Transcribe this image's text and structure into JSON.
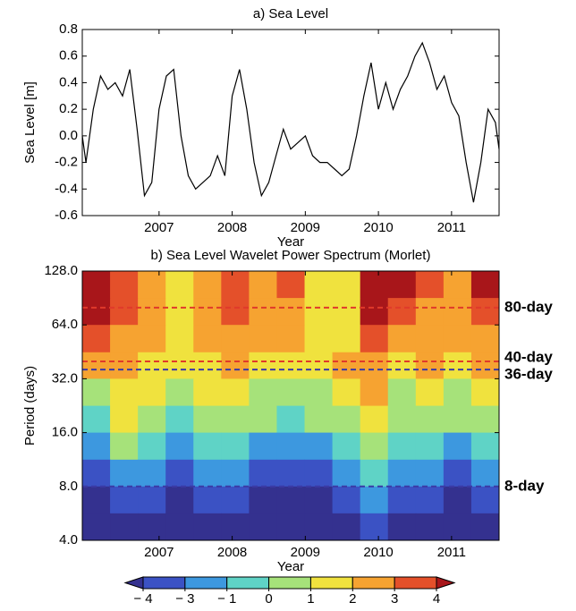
{
  "chart_data": [
    {
      "type": "line",
      "title": "a) Sea Level",
      "x_label": "Year",
      "y_label": "Sea Level [m]",
      "color": "#000000",
      "x": [
        2005.95,
        2006.0,
        2006.1,
        2006.2,
        2006.3,
        2006.4,
        2006.5,
        2006.6,
        2006.7,
        2006.8,
        2006.9,
        2007.0,
        2007.1,
        2007.2,
        2007.3,
        2007.4,
        2007.5,
        2007.6,
        2007.7,
        2007.8,
        2007.9,
        2008.0,
        2008.1,
        2008.2,
        2008.3,
        2008.4,
        2008.5,
        2008.6,
        2008.7,
        2008.8,
        2008.9,
        2009.0,
        2009.1,
        2009.2,
        2009.3,
        2009.4,
        2009.5,
        2009.6,
        2009.7,
        2009.8,
        2009.9,
        2010.0,
        2010.1,
        2010.2,
        2010.3,
        2010.4,
        2010.5,
        2010.6,
        2010.7,
        2010.8,
        2010.9,
        2011.0,
        2011.1,
        2011.2,
        2011.3,
        2011.4,
        2011.5,
        2011.6,
        2011.65
      ],
      "values": [
        0.0,
        -0.2,
        0.2,
        0.45,
        0.35,
        0.4,
        0.3,
        0.5,
        0.05,
        -0.45,
        -0.35,
        0.2,
        0.45,
        0.5,
        0.0,
        -0.3,
        -0.4,
        -0.35,
        -0.3,
        -0.15,
        -0.3,
        0.3,
        0.5,
        0.2,
        -0.2,
        -0.45,
        -0.35,
        -0.15,
        0.05,
        -0.1,
        -0.05,
        0.0,
        -0.15,
        -0.2,
        -0.2,
        -0.25,
        -0.3,
        -0.25,
        0.0,
        0.3,
        0.55,
        0.2,
        0.4,
        0.2,
        0.35,
        0.45,
        0.6,
        0.7,
        0.55,
        0.35,
        0.45,
        0.25,
        0.15,
        -0.2,
        -0.5,
        -0.2,
        0.2,
        0.1,
        -0.1
      ],
      "xlim": [
        2005.95,
        2011.65
      ],
      "xticks": [
        2007,
        2008,
        2009,
        2010,
        2011
      ],
      "ylim": [
        -0.6,
        0.8
      ],
      "yticks": [
        -0.6,
        -0.4,
        -0.2,
        {
          "value": 0,
          "label": "0.0"
        },
        0.2,
        0.4,
        0.6,
        0.8
      ]
    },
    {
      "type": "heatmap",
      "title": "b) Sea Level Wavelet Power Spectrum (Morlet)",
      "x_label": "Year",
      "y_label": "Period (days)",
      "log_scale": true,
      "x_bins": [
        2005.95,
        2006.33,
        2006.71,
        2007.09,
        2007.47,
        2007.85,
        2008.23,
        2008.61,
        2008.99,
        2009.37,
        2009.75,
        2010.13,
        2010.51,
        2010.89,
        2011.27,
        2011.65
      ],
      "y_bins": [
        128,
        90.5,
        64,
        45,
        32,
        22.6,
        16,
        11.3,
        8,
        5.66,
        4
      ],
      "values": [
        [
          4.5,
          3.5,
          2.5,
          1.5,
          2.5,
          3,
          2.5,
          3,
          1.5,
          1,
          4.5,
          4.5,
          3,
          2.5,
          4.5
        ],
        [
          4,
          3,
          2.5,
          1.5,
          2.5,
          3.5,
          2.5,
          2.5,
          1.5,
          1,
          4.5,
          3.5,
          2.5,
          2.5,
          3.5
        ],
        [
          3,
          2.5,
          2.5,
          1.5,
          2,
          2.5,
          2,
          2,
          1.5,
          1.5,
          3,
          2.5,
          2.5,
          2,
          2.5
        ],
        [
          2,
          2.5,
          1.5,
          1,
          1.5,
          2,
          1,
          1.5,
          1,
          2,
          2,
          1.5,
          2,
          1.5,
          2
        ],
        [
          0.5,
          1.5,
          1,
          0.5,
          1,
          1,
          0.5,
          0.5,
          0.5,
          1,
          2,
          0.5,
          1.5,
          0.5,
          1
        ],
        [
          -0.5,
          1,
          0.5,
          -0.5,
          0.5,
          0.5,
          0,
          -0.5,
          0,
          0.5,
          1,
          0,
          0.5,
          0,
          0.5
        ],
        [
          -2,
          0,
          -0.5,
          -2,
          -0.5,
          -1,
          -2,
          -2,
          -2,
          -1,
          0.5,
          -1,
          -0.5,
          -2,
          -1
        ],
        [
          -3.5,
          -2,
          -2,
          -3.5,
          -2,
          -3,
          -3.5,
          -3.5,
          -3.5,
          -3,
          -1,
          -3,
          -2,
          -3.5,
          -3
        ],
        [
          -4.5,
          -3.5,
          -3.5,
          -4.5,
          -3.5,
          -4,
          -4.5,
          -4.5,
          -4.5,
          -4,
          -3,
          -4,
          -3.5,
          -4.5,
          -4
        ],
        [
          -4.5,
          -4.5,
          -4.5,
          -4.5,
          -4.5,
          -4.5,
          -4.5,
          -4.5,
          -4.5,
          -4.5,
          -4,
          -4.5,
          -4.5,
          -4.5,
          -4.5
        ]
      ],
      "xlim": [
        2005.95,
        2011.65
      ],
      "xticks": [
        2007,
        2008,
        2009,
        2010,
        2011
      ],
      "ylim": [
        4,
        128
      ],
      "yticks": [
        {
          "value": 4,
          "label": "4.0"
        },
        {
          "value": 8,
          "label": "8.0"
        },
        {
          "value": 16,
          "label": "16.0"
        },
        {
          "value": 32,
          "label": "32.0"
        },
        {
          "value": 64,
          "label": "64.0"
        },
        {
          "value": 128,
          "label": "128.0"
        }
      ],
      "levels": [
        {
          "value": -4,
          "label": "− 4"
        },
        {
          "value": -3,
          "label": "− 3"
        },
        {
          "value": -1,
          "label": "− 1"
        },
        0,
        1,
        2,
        3,
        4
      ],
      "colors": [
        "#34318f",
        "#3b52c4",
        "#3d98df",
        "#5fd3c6",
        "#a6e27a",
        "#f0e23e",
        "#f6a331",
        "#e4502a",
        "#a8161a"
      ],
      "annotations": [
        {
          "period": 80,
          "label": "80-day",
          "color": "#e03a2a"
        },
        {
          "period": 40,
          "label": "40-day",
          "color": "#e03a2a"
        },
        {
          "period": 36,
          "label": "36-day",
          "color": "#3b3aa6"
        },
        {
          "period": 8,
          "label": "8-day",
          "color": "#3b3aa6"
        }
      ]
    }
  ]
}
